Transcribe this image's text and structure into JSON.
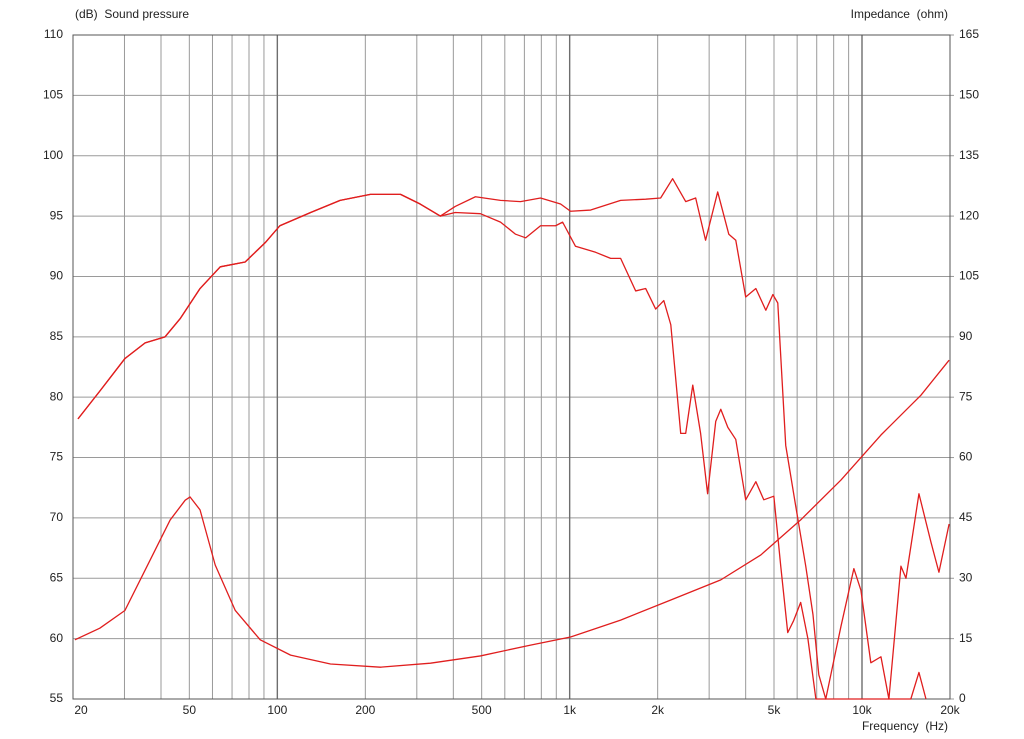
{
  "chart_data": {
    "type": "line",
    "ylabel": "(dB)  Sound pressure",
    "y2label": "Impedance  (ohm)",
    "xlabel": "Frequency  (Hz)",
    "xscale": "log",
    "grid": true,
    "xlim": [
      20,
      20000
    ],
    "xticks": [
      20,
      50,
      100,
      200,
      500,
      {
        "value": 1000,
        "label": "1k"
      },
      {
        "value": 2000,
        "label": "2k"
      },
      {
        "value": 5000,
        "label": "5k"
      },
      {
        "value": 10000,
        "label": "10k"
      },
      {
        "value": 20000,
        "label": "20k"
      }
    ],
    "xminor": [
      30,
      40,
      60,
      70,
      80,
      90,
      300,
      400,
      600,
      700,
      800,
      900,
      3000,
      4000,
      6000,
      7000,
      8000,
      9000
    ],
    "ylim": [
      55,
      110
    ],
    "yticks": [
      55,
      60,
      65,
      70,
      75,
      80,
      85,
      90,
      95,
      100,
      105,
      110
    ],
    "y2lim": [
      0,
      165
    ],
    "y2ticks": [
      0,
      15,
      30,
      45,
      60,
      75,
      90,
      105,
      120,
      135,
      150,
      165
    ],
    "series": [
      {
        "color": "#e01e1e",
        "x": [
          20.8,
          24.7,
          30.1,
          35.3,
          41.3,
          46.5,
          54.4,
          63.8,
          77.6,
          90.9,
          102,
          130,
          164,
          208,
          264,
          308,
          361,
          406,
          476,
          580,
          679,
          795,
          931,
          1007,
          1180,
          1494,
          1820,
          2047,
          2250,
          2494,
          2698,
          2917,
          3209,
          3502,
          3700,
          4001,
          4334,
          4688,
          4956,
          5151,
          5484,
          5931,
          6421,
          6796,
          7117,
          7516,
          8470,
          9379,
          9917,
          10720,
          11610,
          12360,
          13590,
          14140,
          15660,
          17210,
          18330,
          19860
        ],
        "values": [
          78.2,
          80.5,
          83.2,
          84.5,
          85.0,
          86.5,
          89.0,
          90.8,
          91.2,
          92.8,
          94.2,
          95.3,
          96.3,
          96.8,
          96.8,
          96.0,
          95.0,
          95.8,
          96.6,
          96.3,
          96.2,
          96.5,
          96.0,
          95.4,
          95.5,
          96.3,
          96.4,
          96.5,
          98.1,
          96.2,
          96.5,
          93.0,
          97.0,
          93.5,
          93.0,
          88.3,
          89.0,
          87.2,
          88.5,
          87.8,
          76.0,
          71.0,
          66.0,
          62.0,
          57.0,
          55,
          61,
          65.8,
          64,
          58,
          58.5,
          55,
          66,
          65,
          72,
          68,
          65.5,
          69.5
        ]
      },
      {
        "color": "#e01e1e",
        "x": [
          20.8,
          24.7,
          30.1,
          35.3,
          41.3,
          46.5,
          54.4,
          63.8,
          77.6,
          90.9,
          102,
          130,
          164,
          208,
          264,
          308,
          361,
          406,
          495,
          580,
          653,
          707,
          795,
          895,
          946,
          1047,
          1227,
          1381,
          1494,
          1682,
          1820,
          1969,
          2099,
          2218,
          2398,
          2494,
          2637,
          2805,
          2964,
          3160,
          3288,
          3476,
          3700,
          4001,
          4334,
          4613,
          4994,
          5273,
          5571,
          5838,
          6169,
          6530,
          6954,
          7818,
          14690,
          15660,
          16550
        ],
        "values": [
          78.2,
          80.5,
          83.2,
          84.5,
          85.0,
          86.5,
          89.0,
          90.8,
          91.2,
          92.8,
          94.2,
          95.3,
          96.3,
          96.8,
          96.8,
          96.0,
          95.0,
          95.3,
          95.2,
          94.5,
          93.5,
          93.2,
          94.2,
          94.2,
          94.5,
          92.5,
          92,
          91.5,
          91.5,
          88.8,
          89,
          87.3,
          88.0,
          86,
          77,
          77,
          81,
          77,
          72,
          78,
          79,
          77.5,
          76.5,
          71.5,
          73,
          71.5,
          71.8,
          66,
          60.5,
          61.5,
          63,
          60,
          55,
          55,
          55,
          57.2,
          55
        ]
      },
      {
        "color": "#e01e1e",
        "axis": "y2",
        "x": [
          20.3,
          24.7,
          30.1,
          36.7,
          43.0,
          48.4,
          50.3,
          54.4,
          61.3,
          71.8,
          87.4,
          111,
          152,
          225,
          334,
          495,
          735,
          1007,
          1494,
          2218,
          3288,
          4508,
          6169,
          8470,
          11610,
          15910,
          19860
        ],
        "values": [
          14.7,
          17.6,
          22,
          34.5,
          44.5,
          49.4,
          50.2,
          47,
          33.3,
          22,
          14.7,
          10.9,
          8.7,
          7.9,
          8.9,
          10.7,
          13.4,
          15.4,
          19.6,
          24.6,
          29.6,
          35.8,
          44.5,
          54.4,
          65.6,
          75.5,
          84.2
        ]
      }
    ]
  }
}
